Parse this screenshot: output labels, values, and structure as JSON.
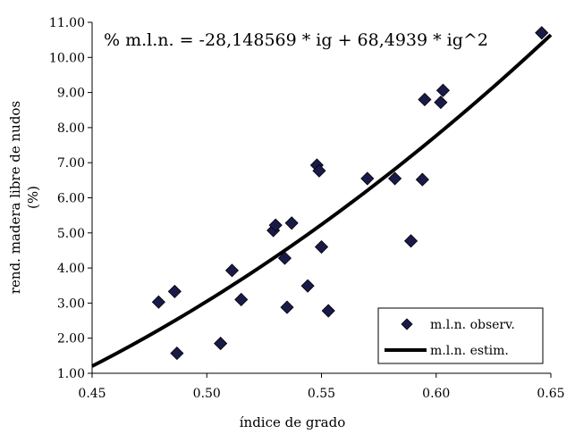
{
  "chart_data": {
    "type": "scatter",
    "title": "",
    "equation": "% m.l.n. = -28,148569 * ig + 68,4939 * ig^2",
    "xlabel": "índice de grado",
    "ylabel_line1": "rend. madera libre de nudos",
    "ylabel_line2": "(%)",
    "xlim": [
      0.45,
      0.65
    ],
    "ylim": [
      1.0,
      11.0
    ],
    "x_ticks": [
      0.45,
      0.5,
      0.55,
      0.6,
      0.65
    ],
    "x_tick_labels": [
      "0.45",
      "0.50",
      "0.55",
      "0.60",
      "0.65"
    ],
    "y_ticks": [
      1,
      2,
      3,
      4,
      5,
      6,
      7,
      8,
      9,
      10,
      11
    ],
    "y_tick_labels": [
      "1.00",
      "2.00",
      "3.00",
      "4.00",
      "5.00",
      "6.00",
      "7.00",
      "8.00",
      "9.00",
      "10.00",
      "11.00"
    ],
    "grid": false,
    "legend_position": "bottom-right",
    "series": [
      {
        "name": "m.l.n. observ.",
        "kind": "scatter",
        "marker": "diamond",
        "color": "#1a1a4a",
        "points": [
          [
            0.479,
            3.03
          ],
          [
            0.486,
            3.33
          ],
          [
            0.487,
            1.57
          ],
          [
            0.506,
            1.85
          ],
          [
            0.511,
            3.93
          ],
          [
            0.515,
            3.1
          ],
          [
            0.529,
            5.07
          ],
          [
            0.53,
            5.22
          ],
          [
            0.534,
            4.28
          ],
          [
            0.535,
            2.88
          ],
          [
            0.537,
            5.28
          ],
          [
            0.544,
            3.49
          ],
          [
            0.548,
            6.93
          ],
          [
            0.549,
            6.77
          ],
          [
            0.55,
            4.6
          ],
          [
            0.553,
            2.78
          ],
          [
            0.57,
            6.55
          ],
          [
            0.582,
            6.55
          ],
          [
            0.589,
            4.77
          ],
          [
            0.594,
            6.52
          ],
          [
            0.595,
            8.8
          ],
          [
            0.602,
            8.72
          ],
          [
            0.603,
            9.06
          ],
          [
            0.646,
            10.7
          ]
        ]
      },
      {
        "name": "m.l.n. estim.",
        "kind": "line",
        "color": "#000000",
        "x_range": [
          0.45,
          0.65
        ],
        "coefficients": {
          "linear": -28.148569,
          "quadratic": 68.4939
        }
      }
    ]
  }
}
